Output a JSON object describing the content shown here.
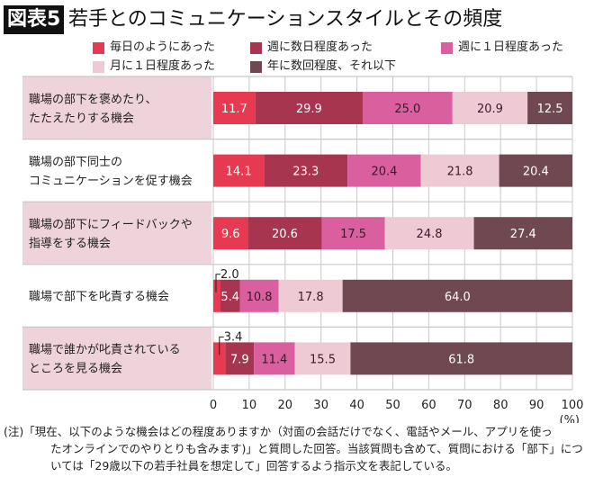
{
  "header": {
    "badge": "図表5",
    "title": "若手とのコミュニケーションスタイルとその頻度"
  },
  "chart_data": {
    "type": "bar",
    "orientation": "horizontal-stacked",
    "title": "若手とのコミュニケーションスタイルとその頻度",
    "categories": [
      "職場の部下を褒めたり、\nたたえたりする機会",
      "職場の部下同士の\nコミュニケーションを促す機会",
      "職場の部下にフィードバックや\n指導をする機会",
      "職場で部下を叱責する機会",
      "職場で誰かが叱責されている\nところを見る機会"
    ],
    "series": [
      {
        "name": "毎日のようにあった",
        "color": "#e63a52",
        "values": [
          11.7,
          14.1,
          9.6,
          2.0,
          3.4
        ]
      },
      {
        "name": "週に数日程度あった",
        "color": "#a8354f",
        "values": [
          29.9,
          23.3,
          20.6,
          5.4,
          7.9
        ]
      },
      {
        "name": "週に１日程度あった",
        "color": "#d95f9f",
        "values": [
          25.0,
          20.4,
          17.5,
          10.8,
          11.4
        ]
      },
      {
        "name": "月に１日程度あった",
        "color": "#eecbd4",
        "values": [
          20.9,
          21.8,
          24.8,
          17.8,
          15.5
        ]
      },
      {
        "name": "年に数回程度、それ以下",
        "color": "#6f4851",
        "values": [
          12.5,
          20.4,
          27.4,
          64.0,
          61.8
        ]
      }
    ],
    "xlim": [
      0,
      100
    ],
    "xticks": [
      "0",
      "10",
      "20",
      "30",
      "40",
      "50",
      "60",
      "70",
      "80",
      "90",
      "100"
    ],
    "xunit": "(%)",
    "grid": true,
    "legend": "top"
  },
  "note": [
    "(注)「現在、以下のような機会はどの程度ありますか（対面の会話だけでなく、電話やメール、アプリを使っ",
    "たオンラインでのやりとりも含みます)」と質問した回答。当該質問も含めて、質問における「部下」につ",
    "いては「29歳以下の若手社員を想定して」回答するよう指示文を表記している。"
  ]
}
